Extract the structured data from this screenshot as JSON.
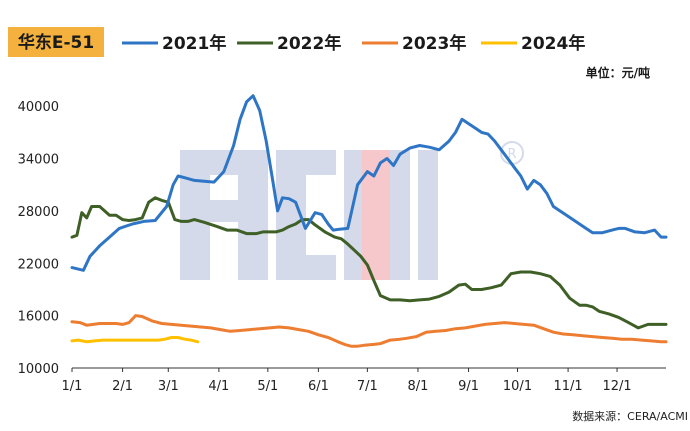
{
  "chart_data": {
    "type": "line",
    "title": "华东E-51",
    "unit": "单位：元/吨",
    "source": "数据来源：CERA/ACMI",
    "watermark": "ACMI",
    "xlabel": "",
    "ylabel": "",
    "x_ticks": [
      "1/1",
      "2/1",
      "3/1",
      "4/1",
      "5/1",
      "6/1",
      "7/1",
      "8/1",
      "9/1",
      "10/1",
      "11/1",
      "12/1"
    ],
    "y_ticks": [
      10000,
      16000,
      22000,
      28000,
      34000,
      40000
    ],
    "y_tick_labels": [
      "10000",
      "16000",
      "22000",
      "28000",
      "34000",
      "40000"
    ],
    "ylim": [
      10000,
      43000
    ],
    "xlim": [
      1,
      365
    ],
    "grid": false,
    "legend_position": "top",
    "series": [
      {
        "name": "2021年",
        "color": "#2e75c5",
        "x": [
          1,
          8,
          12,
          18,
          24,
          30,
          38,
          45,
          52,
          59,
          63,
          66,
          70,
          76,
          82,
          88,
          94,
          100,
          104,
          108,
          112,
          116,
          120,
          124,
          127,
          130,
          134,
          138,
          144,
          150,
          154,
          158,
          161,
          165,
          170,
          176,
          182,
          186,
          190,
          194,
          198,
          202,
          208,
          214,
          220,
          226,
          232,
          236,
          240,
          244,
          248,
          252,
          256,
          260,
          264,
          268,
          272,
          276,
          280,
          284,
          288,
          292,
          296,
          300,
          304,
          308,
          312,
          316,
          320,
          326,
          332,
          336,
          340,
          346,
          352,
          358,
          362,
          365
        ],
        "values": [
          21500,
          21200,
          22800,
          24000,
          25000,
          26000,
          26500,
          26800,
          26900,
          28500,
          31000,
          32000,
          31800,
          31500,
          31400,
          31300,
          32500,
          35500,
          38500,
          40500,
          41200,
          39500,
          36000,
          31500,
          28000,
          29500,
          29400,
          29000,
          26000,
          27800,
          27600,
          26500,
          25800,
          25900,
          26000,
          31000,
          32500,
          32000,
          33500,
          34000,
          33200,
          34500,
          35200,
          35500,
          35300,
          35000,
          36000,
          37000,
          38500,
          38000,
          37500,
          37000,
          36800,
          36000,
          35000,
          34000,
          33000,
          32000,
          30500,
          31500,
          31000,
          30000,
          28500,
          28000,
          27500,
          27000,
          26500,
          26000,
          25500,
          25500,
          25800,
          26000,
          26000,
          25600,
          25500,
          25800,
          25000,
          25000
        ]
      },
      {
        "name": "2022年",
        "color": "#3e5f25",
        "x": [
          1,
          4,
          7,
          10,
          13,
          18,
          24,
          28,
          32,
          36,
          40,
          44,
          48,
          52,
          56,
          60,
          64,
          68,
          72,
          76,
          82,
          90,
          96,
          102,
          108,
          114,
          118,
          122,
          126,
          130,
          134,
          138,
          142,
          146,
          150,
          156,
          162,
          166,
          170,
          174,
          178,
          182,
          186,
          190,
          196,
          202,
          208,
          214,
          220,
          226,
          232,
          238,
          242,
          246,
          252,
          258,
          264,
          270,
          276,
          282,
          288,
          294,
          300,
          306,
          312,
          316,
          320,
          324,
          330,
          336,
          342,
          348,
          354,
          360,
          365
        ],
        "values": [
          25000,
          25200,
          27800,
          27200,
          28500,
          28500,
          27500,
          27500,
          27000,
          26900,
          27000,
          27200,
          29000,
          29500,
          29200,
          29000,
          27000,
          26800,
          26800,
          27000,
          26700,
          26200,
          25800,
          25800,
          25400,
          25400,
          25600,
          25600,
          25600,
          25800,
          26200,
          26500,
          27000,
          27000,
          26400,
          25600,
          25000,
          24800,
          24200,
          23500,
          22800,
          21800,
          20000,
          18300,
          17800,
          17800,
          17700,
          17800,
          17900,
          18200,
          18700,
          19500,
          19600,
          19000,
          19000,
          19200,
          19500,
          20800,
          21000,
          21000,
          20800,
          20500,
          19500,
          18000,
          17200,
          17200,
          17000,
          16500,
          16200,
          15800,
          15200,
          14600,
          15000,
          15000,
          15000
        ]
      },
      {
        "name": "2023年",
        "color": "#ed7d31",
        "x": [
          1,
          6,
          10,
          14,
          18,
          22,
          28,
          32,
          36,
          40,
          44,
          50,
          56,
          62,
          68,
          74,
          80,
          86,
          92,
          98,
          104,
          110,
          116,
          122,
          128,
          134,
          140,
          146,
          152,
          158,
          164,
          168,
          172,
          176,
          180,
          186,
          190,
          196,
          202,
          206,
          212,
          218,
          224,
          230,
          236,
          242,
          248,
          254,
          260,
          266,
          272,
          278,
          284,
          290,
          296,
          302,
          308,
          314,
          320,
          326,
          332,
          338,
          344,
          350,
          356,
          362,
          365
        ],
        "values": [
          15300,
          15200,
          14900,
          15000,
          15100,
          15100,
          15100,
          15000,
          15200,
          16000,
          15900,
          15400,
          15100,
          15000,
          14900,
          14800,
          14700,
          14600,
          14400,
          14200,
          14300,
          14400,
          14500,
          14600,
          14700,
          14600,
          14400,
          14200,
          13800,
          13500,
          13000,
          12700,
          12500,
          12500,
          12600,
          12700,
          12800,
          13200,
          13300,
          13400,
          13600,
          14100,
          14200,
          14300,
          14500,
          14600,
          14800,
          15000,
          15100,
          15200,
          15100,
          15000,
          14900,
          14500,
          14100,
          13900,
          13800,
          13700,
          13600,
          13500,
          13400,
          13300,
          13300,
          13200,
          13100,
          13000,
          13000
        ]
      },
      {
        "name": "2024年",
        "color": "#ffc000",
        "x": [
          1,
          5,
          10,
          15,
          20,
          25,
          30,
          36,
          42,
          48,
          54,
          58,
          62,
          66,
          70,
          74,
          78
        ],
        "values": [
          13100,
          13200,
          13000,
          13100,
          13200,
          13200,
          13200,
          13200,
          13200,
          13200,
          13200,
          13300,
          13500,
          13500,
          13300,
          13200,
          13000
        ]
      }
    ]
  }
}
